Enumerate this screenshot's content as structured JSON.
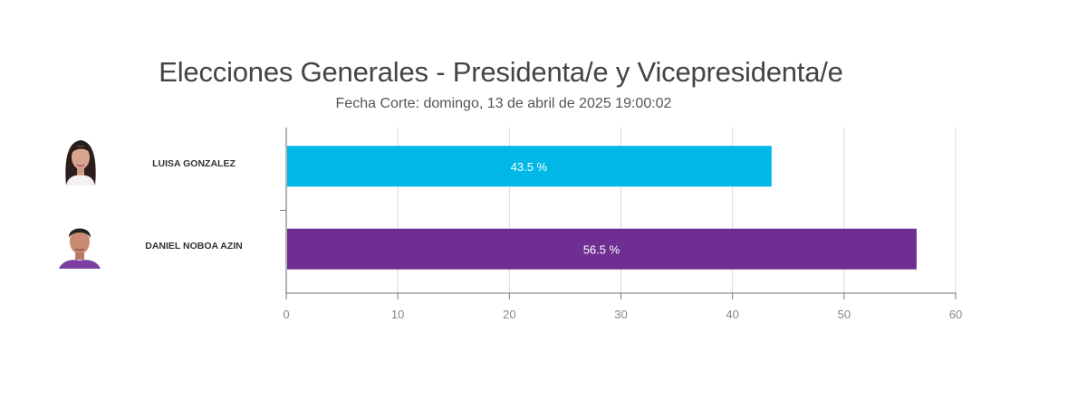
{
  "chart_data": {
    "type": "bar",
    "orientation": "horizontal",
    "title": "Elecciones Generales - Presidenta/e y Vicepresidenta/e",
    "subtitle": "Fecha Corte: domingo, 13 de abril de 2025 19:00:02",
    "categories": [
      "LUISA GONZALEZ",
      "DANIEL NOBOA AZIN"
    ],
    "values": [
      43.5,
      56.5
    ],
    "data_labels": [
      "43.5 %",
      "56.5 %"
    ],
    "colors": [
      "#00b8e8",
      "#6f2e91"
    ],
    "xlabel": "",
    "ylabel": "",
    "xlim": [
      0,
      60
    ],
    "xticks": [
      0,
      10,
      20,
      30,
      40,
      50,
      60
    ],
    "grid": true,
    "legend": "none"
  },
  "candidates": [
    {
      "name": "LUISA GONZALEZ",
      "avatar": "woman-portrait-icon"
    },
    {
      "name": "DANIEL NOBOA AZIN",
      "avatar": "man-portrait-icon"
    }
  ]
}
